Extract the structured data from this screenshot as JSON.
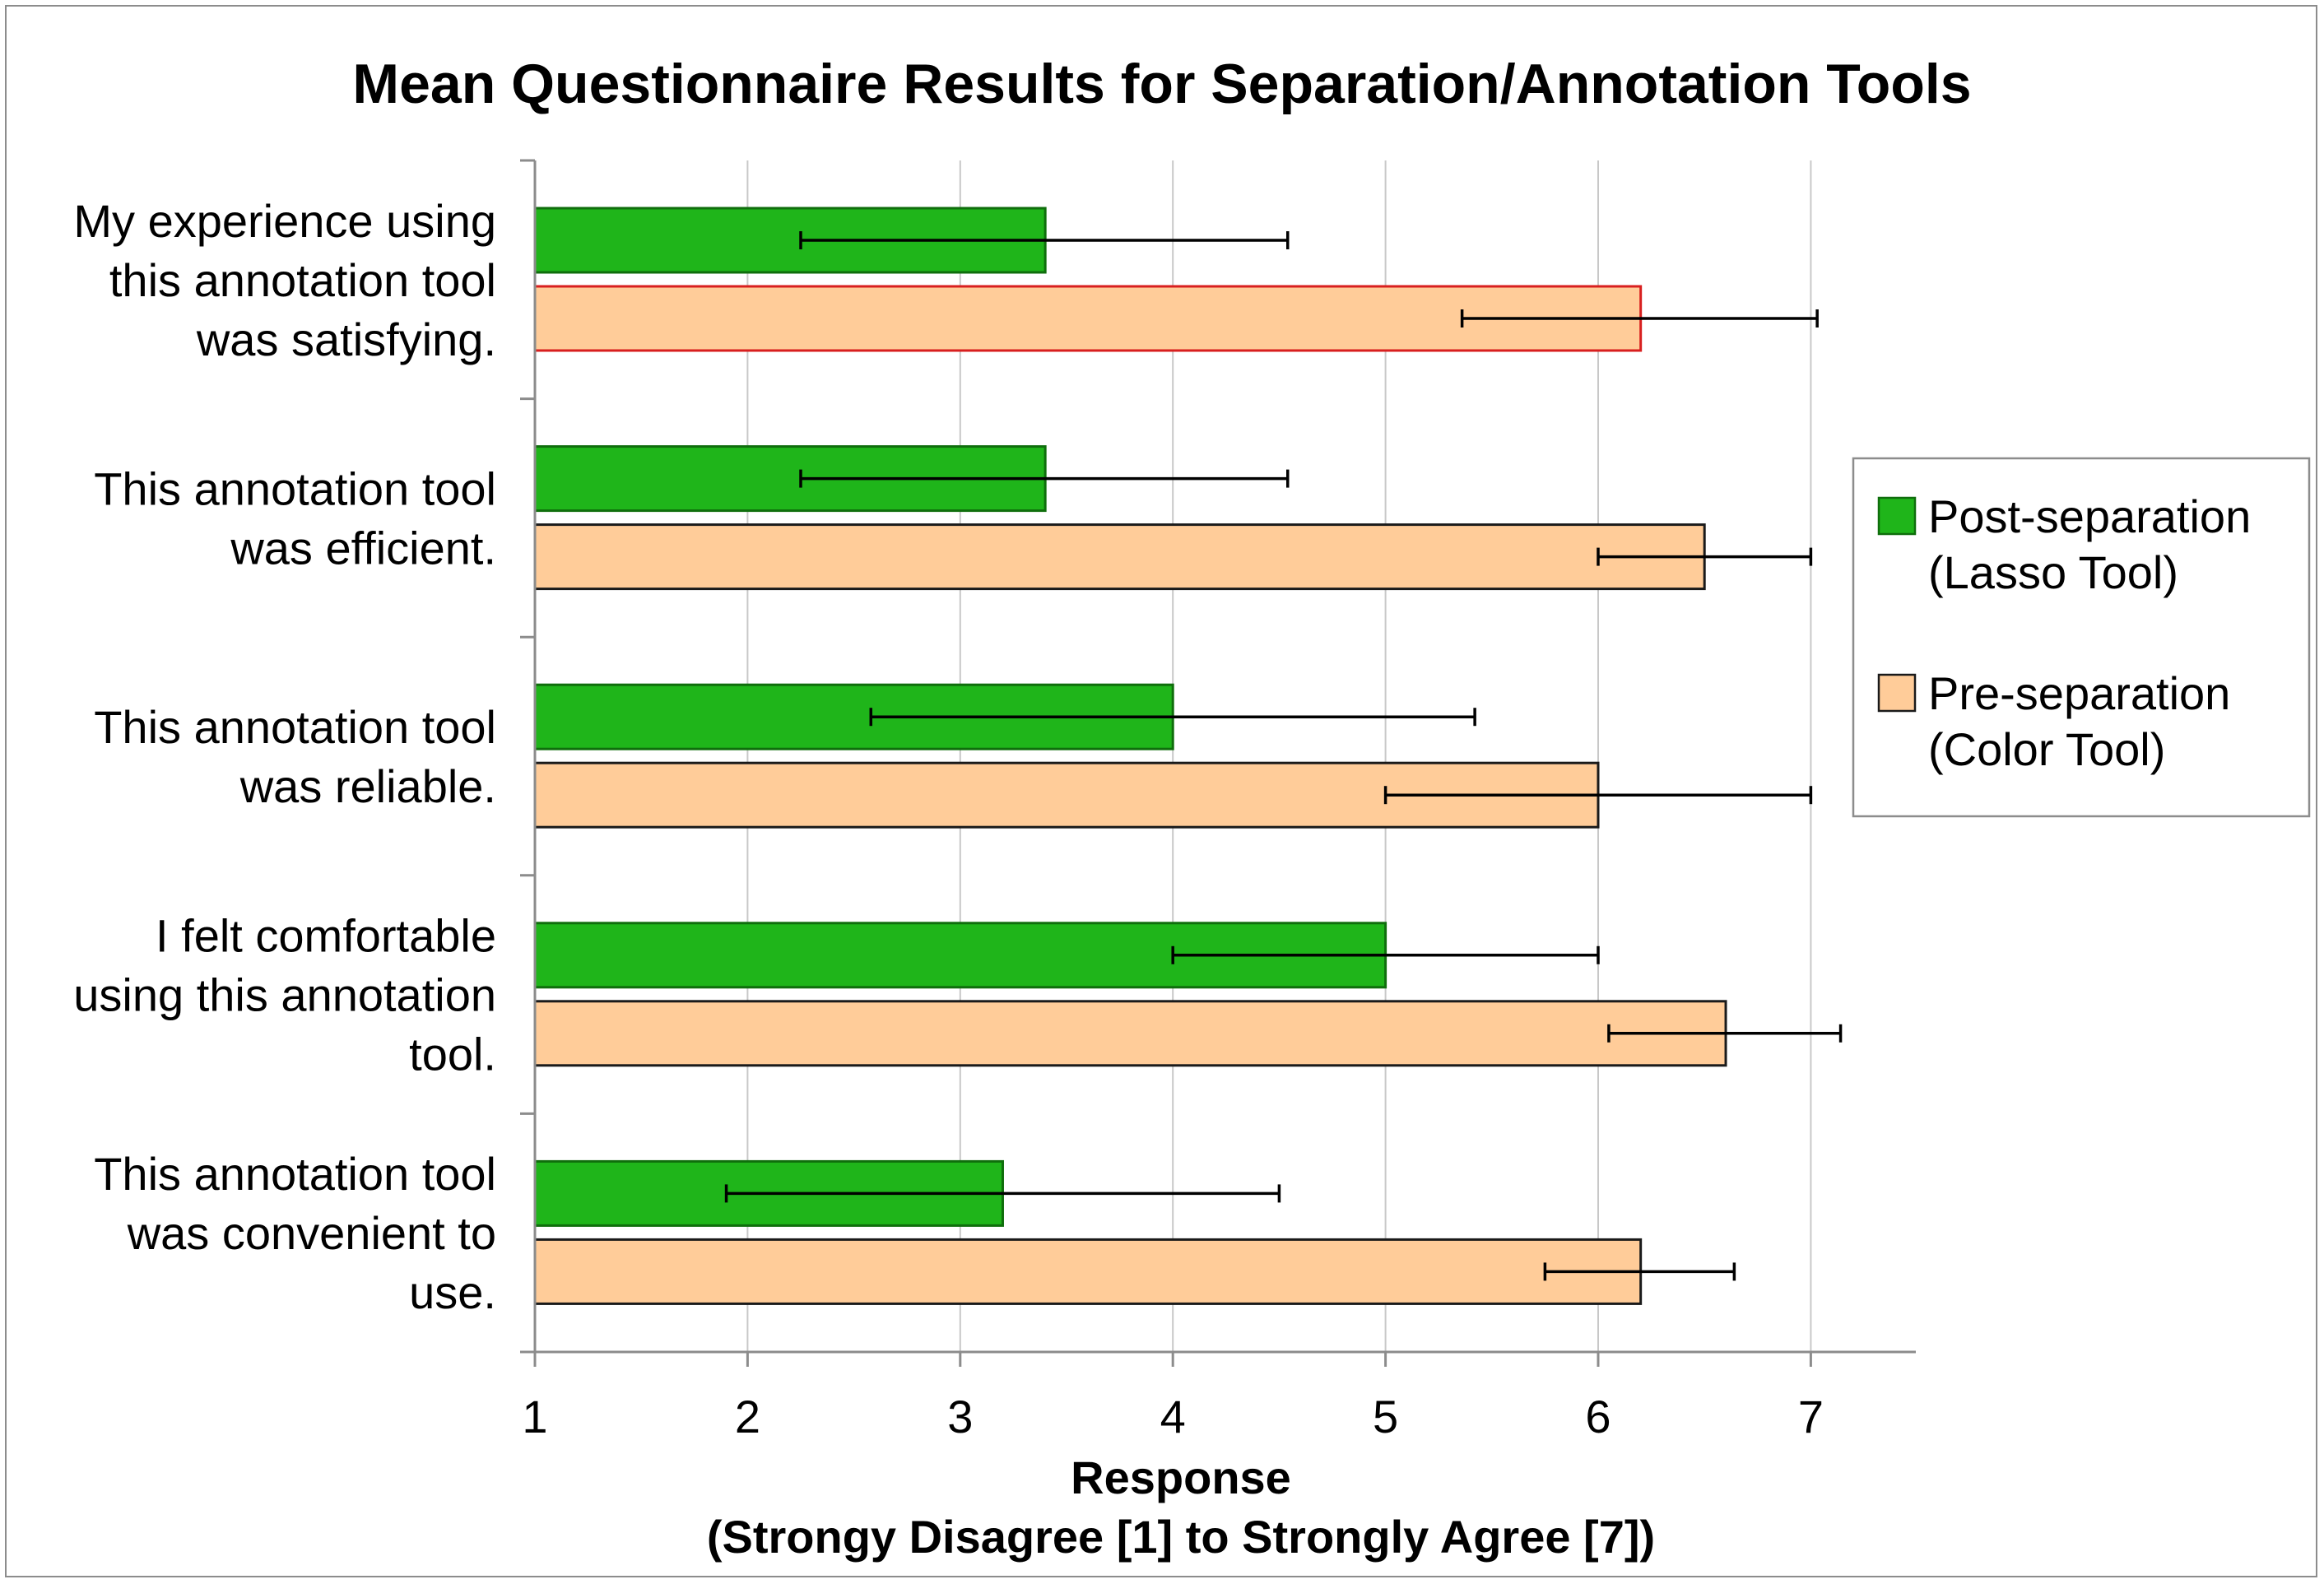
{
  "chart_data": {
    "type": "bar",
    "orientation": "horizontal",
    "title": "Mean Questionnaire Results for Separation/Annotation Tools",
    "xlabel": [
      "Response",
      "(Strongy Disagree [1] to Strongly Agree [7])"
    ],
    "ylabel": "",
    "xlim": [
      1,
      7.5
    ],
    "xticks": [
      1,
      2,
      3,
      4,
      5,
      6,
      7
    ],
    "grid": "vertical",
    "legend_position": "right",
    "categories": [
      [
        "My experience using",
        "this annotation tool",
        "was satisfying."
      ],
      [
        "This annotation tool",
        "was efficient."
      ],
      [
        "This annotation tool",
        "was reliable."
      ],
      [
        "I felt comfortable",
        "using this annotation",
        "tool."
      ],
      [
        "This annotation tool",
        "was convenient to",
        "use."
      ]
    ],
    "series": [
      {
        "name": [
          "Post-separation",
          "(Lasso Tool)"
        ],
        "color": "#1fb51a",
        "stroke": "#0f6e0c",
        "values": [
          3.4,
          3.4,
          4.0,
          5.0,
          3.2
        ],
        "error_low": [
          2.25,
          2.25,
          2.58,
          4.0,
          1.9
        ],
        "error_high": [
          4.54,
          4.54,
          5.42,
          6.0,
          4.5
        ]
      },
      {
        "name": [
          "Pre-separation",
          "(Color Tool)"
        ],
        "color": "#ffcc99",
        "stroke": "#1a1a1a",
        "values": [
          6.2,
          6.5,
          6.0,
          6.6,
          6.2
        ],
        "error_low": [
          5.36,
          6.0,
          5.0,
          6.05,
          5.75
        ],
        "error_high": [
          7.03,
          7.0,
          7.0,
          7.14,
          6.64
        ]
      }
    ],
    "highlight": {
      "series": 1,
      "category": 0,
      "stroke": "#d81f1f"
    }
  }
}
